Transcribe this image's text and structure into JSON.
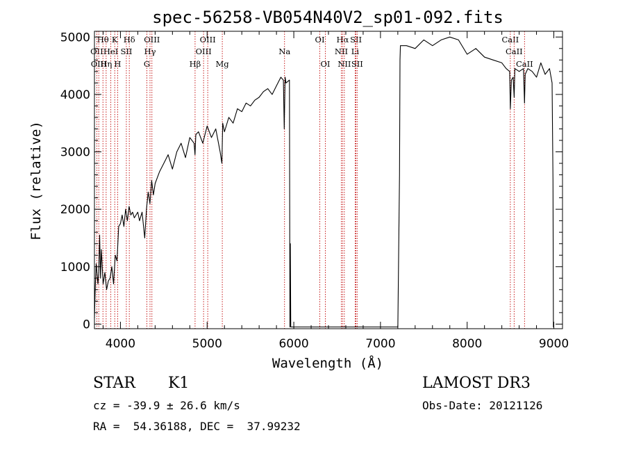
{
  "chart_data": {
    "type": "line",
    "title": "spec-56258-VB054N40V2_sp01-092.fits",
    "xlabel": "Wavelength (Å)",
    "ylabel": "Flux (relative)",
    "xlim": [
      3700,
      9100
    ],
    "ylim": [
      -80,
      5100
    ],
    "xticks": [
      4000,
      5000,
      6000,
      7000,
      8000,
      9000
    ],
    "yticks": [
      0,
      1000,
      2000,
      3000,
      4000,
      5000
    ],
    "x_minor_step": 200,
    "y_minor_step": 200,
    "series": [
      {
        "name": "spectrum",
        "x": [
          3700,
          3710,
          3720,
          3740,
          3750,
          3760,
          3770,
          3780,
          3800,
          3820,
          3840,
          3860,
          3880,
          3900,
          3920,
          3940,
          3960,
          3980,
          4000,
          4020,
          4040,
          4060,
          4080,
          4100,
          4120,
          4140,
          4160,
          4180,
          4200,
          4220,
          4250,
          4280,
          4300,
          4320,
          4340,
          4360,
          4380,
          4400,
          4450,
          4500,
          4550,
          4600,
          4650,
          4700,
          4750,
          4800,
          4850,
          4860,
          4870,
          4900,
          4950,
          5000,
          5050,
          5100,
          5150,
          5170,
          5180,
          5200,
          5250,
          5300,
          5350,
          5400,
          5450,
          5500,
          5550,
          5600,
          5650,
          5700,
          5750,
          5800,
          5850,
          5880,
          5890,
          5900,
          5910,
          5950,
          5955,
          5960,
          5965,
          6500,
          7000,
          7200,
          7220,
          7225,
          7230,
          7300,
          7400,
          7500,
          7600,
          7700,
          7800,
          7900,
          8000,
          8100,
          8200,
          8300,
          8400,
          8450,
          8490,
          8498,
          8510,
          8530,
          8542,
          8550,
          8600,
          8650,
          8662,
          8670,
          8700,
          8750,
          8800,
          8850,
          8900,
          8950,
          8980,
          8990,
          8995,
          9000
        ],
        "values": [
          100,
          650,
          1050,
          700,
          900,
          1550,
          800,
          1300,
          700,
          900,
          600,
          750,
          800,
          1000,
          700,
          1200,
          1100,
          1700,
          1750,
          1900,
          1700,
          2000,
          1800,
          2050,
          1900,
          1950,
          1850,
          1900,
          1950,
          1800,
          1950,
          1500,
          2000,
          2300,
          2100,
          2500,
          2250,
          2450,
          2650,
          2800,
          2950,
          2700,
          3000,
          3150,
          2900,
          3250,
          3150,
          2950,
          3300,
          3350,
          3150,
          3450,
          3250,
          3400,
          3000,
          2800,
          3500,
          3350,
          3600,
          3500,
          3750,
          3700,
          3850,
          3800,
          3900,
          3950,
          4050,
          4100,
          4000,
          4150,
          4300,
          4250,
          3400,
          4300,
          4200,
          4250,
          -50,
          1400,
          -50,
          -50,
          -50,
          -50,
          2600,
          4600,
          4850,
          4850,
          4800,
          4950,
          4850,
          4950,
          5000,
          4950,
          4700,
          4800,
          4650,
          4600,
          4550,
          4450,
          4400,
          3750,
          4250,
          4300,
          3950,
          4450,
          4400,
          4450,
          3850,
          4350,
          4450,
          4400,
          4300,
          4550,
          4350,
          4450,
          4200,
          2500,
          -50,
          -50
        ]
      }
    ],
    "line_markers": [
      {
        "label": "Hθ",
        "wl": 3798,
        "row": 0
      },
      {
        "label": "K",
        "wl": 3934,
        "row": 0
      },
      {
        "label": "Hδ",
        "wl": 4102,
        "row": 0
      },
      {
        "label": "OIII",
        "wl": 4363,
        "row": 0
      },
      {
        "label": "OIII",
        "wl": 5007,
        "row": 0
      },
      {
        "label": "OI",
        "wl": 6300,
        "row": 0
      },
      {
        "label": "Hα",
        "wl": 6563,
        "row": 0
      },
      {
        "label": "SII",
        "wl": 6717,
        "row": 0
      },
      {
        "label": "CaII",
        "wl": 8498,
        "row": 0
      },
      {
        "label": "OII",
        "wl": 3727,
        "row": 1
      },
      {
        "label": "HeI",
        "wl": 3889,
        "row": 1
      },
      {
        "label": "SII",
        "wl": 4068,
        "row": 1
      },
      {
        "label": "Hγ",
        "wl": 4341,
        "row": 1
      },
      {
        "label": "OIII",
        "wl": 4959,
        "row": 1
      },
      {
        "label": "NII",
        "wl": 6548,
        "row": 1
      },
      {
        "label": "Li",
        "wl": 6708,
        "row": 1
      },
      {
        "label": "CaII",
        "wl": 8542,
        "row": 1
      },
      {
        "label": "OIII",
        "wl": 3750,
        "row": 2
      },
      {
        "label": "Hη",
        "wl": 3835,
        "row": 2
      },
      {
        "label": "H",
        "wl": 3968,
        "row": 2
      },
      {
        "label": "G",
        "wl": 4305,
        "row": 2
      },
      {
        "label": "Hβ",
        "wl": 4861,
        "row": 2
      },
      {
        "label": "Mg",
        "wl": 5175,
        "row": 2
      },
      {
        "label": "Na",
        "wl": 5893,
        "row": 1
      },
      {
        "label": "OI",
        "wl": 6364,
        "row": 2
      },
      {
        "label": "NII",
        "wl": 6583,
        "row": 2
      },
      {
        "label": "SII",
        "wl": 6731,
        "row": 2
      },
      {
        "label": "CaII",
        "wl": 8662,
        "row": 2
      }
    ]
  },
  "info": {
    "object_class": "STAR",
    "subclass": "K1",
    "survey": "LAMOST DR3",
    "cz": "cz = -39.9 ± 26.6 km/s",
    "obs_date": "Obs-Date: 20121126",
    "coords": "RA =  54.36188, DEC =  37.99232"
  },
  "colors": {
    "axis": "#000000",
    "line": "#000000",
    "marker": "#c00000"
  }
}
